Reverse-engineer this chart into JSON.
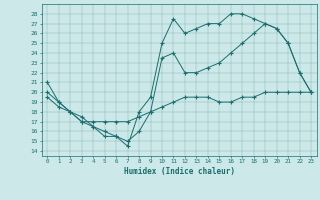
{
  "title": "",
  "xlabel": "Humidex (Indice chaleur)",
  "bg_color": "#cce8e8",
  "line_color": "#1a6e6e",
  "xlim": [
    -0.5,
    23.5
  ],
  "ylim": [
    13.5,
    29.0
  ],
  "yticks": [
    14,
    15,
    16,
    17,
    18,
    19,
    20,
    21,
    22,
    23,
    24,
    25,
    26,
    27,
    28
  ],
  "xticks": [
    0,
    1,
    2,
    3,
    4,
    5,
    6,
    7,
    8,
    9,
    10,
    11,
    12,
    13,
    14,
    15,
    16,
    17,
    18,
    19,
    20,
    21,
    22,
    23
  ],
  "line1_x": [
    0,
    1,
    2,
    3,
    4,
    5,
    6,
    7,
    8,
    9,
    10,
    11,
    12,
    13,
    14,
    15,
    16,
    17,
    18,
    19,
    20,
    21,
    22,
    23
  ],
  "line1_y": [
    21,
    19,
    18,
    17.5,
    16.5,
    15.5,
    15.5,
    14.5,
    18,
    19.5,
    25,
    27.5,
    26,
    26.5,
    27,
    27,
    28,
    28,
    27.5,
    27,
    26.5,
    25,
    22,
    20
  ],
  "line2_x": [
    0,
    1,
    2,
    3,
    4,
    5,
    6,
    7,
    8,
    9,
    10,
    11,
    12,
    13,
    14,
    15,
    16,
    17,
    18,
    19,
    20,
    21,
    22,
    23
  ],
  "line2_y": [
    20,
    19,
    18,
    17,
    16.5,
    16,
    15.5,
    15,
    16,
    18,
    23.5,
    24,
    22,
    22,
    22.5,
    23,
    24,
    25,
    26,
    27,
    26.5,
    25,
    22,
    20
  ],
  "line3_x": [
    0,
    1,
    2,
    3,
    4,
    5,
    6,
    7,
    8,
    9,
    10,
    11,
    12,
    13,
    14,
    15,
    16,
    17,
    18,
    19,
    20,
    21,
    22,
    23
  ],
  "line3_y": [
    19.5,
    18.5,
    18,
    17,
    17,
    17,
    17,
    17,
    17.5,
    18,
    18.5,
    19,
    19.5,
    19.5,
    19.5,
    19,
    19,
    19.5,
    19.5,
    20,
    20,
    20,
    20,
    20
  ]
}
